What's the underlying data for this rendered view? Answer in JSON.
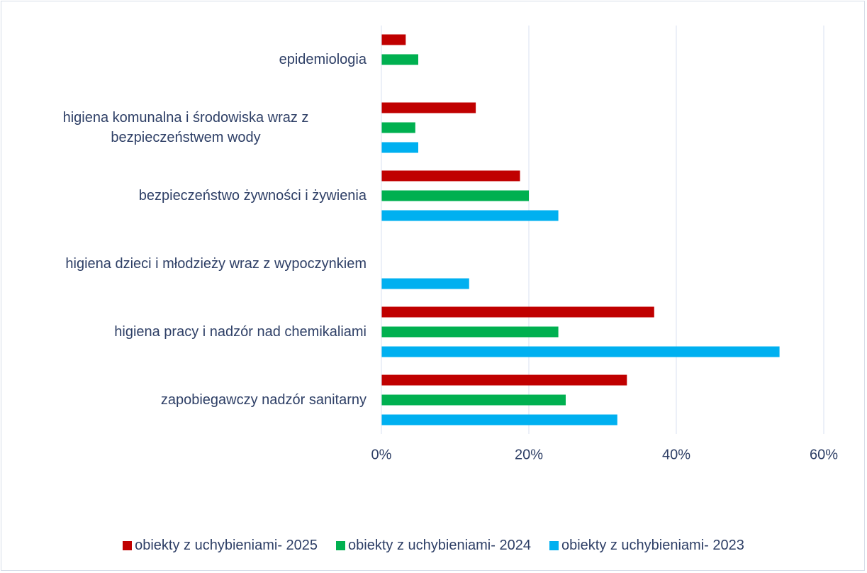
{
  "chart_data": {
    "type": "barh",
    "categories": [
      "epidemiologia",
      "higiena komunalna i środowiska wraz z bezpieczeństwem wody",
      "bezpieczeństwo żywności i żywienia",
      "higiena dzieci i młodzieży wraz z wypoczynkiem",
      "higiena pracy i nadzór nad chemikaliami",
      "zapobiegawczy  nadzór sanitarny"
    ],
    "series": [
      {
        "name": "obiekty z uchybieniami- 2025",
        "color": "#c00000",
        "values": [
          3.3,
          12.8,
          18.8,
          null,
          37,
          33.3
        ]
      },
      {
        "name": "obiekty z uchybieniami- 2024",
        "color": "#00b050",
        "values": [
          5,
          4.6,
          20,
          null,
          24,
          25
        ]
      },
      {
        "name": "obiekty z uchybieniami- 2023",
        "color": "#00b0f0",
        "values": [
          null,
          5,
          24,
          11.9,
          54,
          32
        ]
      }
    ],
    "xlim": [
      0,
      60
    ],
    "xticks": [
      {
        "value": 0,
        "label": "0%"
      },
      {
        "value": 20,
        "label": "20%"
      },
      {
        "value": 40,
        "label": "40%"
      },
      {
        "value": 60,
        "label": "60%"
      }
    ],
    "grid": true,
    "legend": "bottom"
  }
}
